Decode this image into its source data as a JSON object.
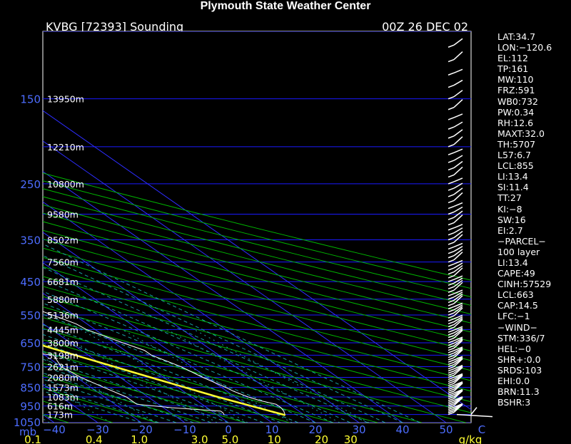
{
  "header": {
    "title": "Plymouth State Weather Center",
    "station": "KVBG [72393] Sounding",
    "time": "00Z 26 DEC 02"
  },
  "colors": {
    "isobar": "#1a1aff",
    "isotherm": "#2d2dff",
    "dry_adiabat": "#00b400",
    "moist_adiabat": "#1aa3a3",
    "mixing_ratio": "#1aa3a3",
    "temperature": "#ffffff",
    "dewpoint": "#ffffff",
    "parcel": "#ffff33",
    "pressure_label": "#4d6dff",
    "axis_label": "#ffff33"
  },
  "chart_data": {
    "type": "line",
    "title": "Plymouth State Weather Center",
    "xlabel": "C",
    "ylabel": "mb",
    "pressure_ticks": [
      "150",
      "250",
      "350",
      "450",
      "550",
      "650",
      "750",
      "850",
      "950",
      "1050"
    ],
    "pressure_values": [
      150,
      250,
      350,
      450,
      550,
      650,
      750,
      850,
      950,
      1050
    ],
    "height_labels": [
      {
        "p": 150,
        "label": "13950m"
      },
      {
        "p": 200,
        "label": "12210m"
      },
      {
        "p": 250,
        "label": "10800m"
      },
      {
        "p": 300,
        "label": "9580m"
      },
      {
        "p": 350,
        "label": "8502m"
      },
      {
        "p": 400,
        "label": "7560m"
      },
      {
        "p": 450,
        "label": "6681m"
      },
      {
        "p": 500,
        "label": "5880m"
      },
      {
        "p": 550,
        "label": "5136m"
      },
      {
        "p": 600,
        "label": "4445m"
      },
      {
        "p": 650,
        "label": "3800m"
      },
      {
        "p": 700,
        "label": "3198m"
      },
      {
        "p": 750,
        "label": "2621m"
      },
      {
        "p": 800,
        "label": "2080m"
      },
      {
        "p": 850,
        "label": "1573m"
      },
      {
        "p": 900,
        "label": "1083m"
      },
      {
        "p": 950,
        "label": "616m"
      },
      {
        "p": 1000,
        "label": "173m"
      }
    ],
    "temp_ticks": [
      "−40",
      "−30",
      "−20",
      "−10",
      "0",
      "10",
      "20",
      "30",
      "40",
      "50"
    ],
    "temp_tick_values": [
      -40,
      -30,
      -20,
      -10,
      0,
      10,
      20,
      30,
      40,
      50
    ],
    "temp_unit": "C",
    "mixing_ratio_ticks": [
      "0.1",
      "0.4",
      "1.0",
      "3.0",
      "5.0",
      "10",
      "20",
      "30"
    ],
    "mixing_ratio_values": [
      0.1,
      0.4,
      1.0,
      3.0,
      5.0,
      10,
      20,
      30
    ],
    "mixing_ratio_unit": "g/kg",
    "series": [
      {
        "name": "Temperature",
        "points": [
          [
            1004,
            15.5
          ],
          [
            980,
            16.5
          ],
          [
            960,
            17
          ],
          [
            940,
            17
          ],
          [
            920,
            14.5
          ],
          [
            900,
            13
          ],
          [
            870,
            11.5
          ],
          [
            850,
            11
          ],
          [
            800,
            9
          ],
          [
            750,
            7.5
          ],
          [
            700,
            4.5
          ],
          [
            680,
            4.5
          ],
          [
            650,
            2
          ],
          [
            600,
            -2
          ],
          [
            580,
            -2.5
          ],
          [
            550,
            -5
          ],
          [
            500,
            -10
          ],
          [
            450,
            -14.5
          ],
          [
            400,
            -20
          ],
          [
            350,
            -26.5
          ],
          [
            300,
            -34
          ],
          [
            270,
            -39
          ],
          [
            250,
            -42
          ],
          [
            220,
            -47
          ],
          [
            200,
            -51
          ],
          [
            180,
            -54
          ],
          [
            160,
            -57
          ],
          [
            150,
            -58
          ],
          [
            140,
            -57
          ],
          [
            125,
            -54
          ],
          [
            110,
            -52
          ],
          [
            100,
            -51
          ]
        ]
      },
      {
        "name": "Dewpoint",
        "points": [
          [
            1004,
            1.5
          ],
          [
            990,
            2
          ],
          [
            980,
            2
          ],
          [
            960,
            -8
          ],
          [
            940,
            -15
          ],
          [
            900,
            -15
          ],
          [
            850,
            -17
          ],
          [
            800,
            -19
          ],
          [
            750,
            -20
          ],
          [
            700,
            -18
          ],
          [
            680,
            -26
          ],
          [
            650,
            -33
          ],
          [
            620,
            -28
          ],
          [
            550,
            -20
          ],
          [
            500,
            -16
          ],
          [
            470,
            -12
          ],
          [
            450,
            -14.5
          ],
          [
            420,
            -17
          ],
          [
            400,
            -28
          ],
          [
            370,
            -28
          ],
          [
            350,
            -23
          ],
          [
            320,
            -24
          ],
          [
            300,
            -26
          ],
          [
            270,
            -31
          ],
          [
            250,
            -39
          ],
          [
            220,
            -44
          ],
          [
            200,
            -47
          ],
          [
            180,
            -47
          ],
          [
            160,
            -52
          ],
          [
            140,
            -50
          ],
          [
            125,
            -48
          ],
          [
            110,
            -48
          ],
          [
            100,
            -48
          ]
        ]
      },
      {
        "name": "Parcel",
        "points": [
          [
            1004,
            15.5
          ],
          [
            900,
            6
          ],
          [
            800,
            -3
          ],
          [
            700,
            -13
          ],
          [
            663,
            -17
          ],
          [
            600,
            -20.5
          ],
          [
            550,
            -24
          ],
          [
            500,
            -27.5
          ],
          [
            450,
            -32.5
          ],
          [
            400,
            -38
          ],
          [
            350,
            -44
          ],
          [
            300,
            -51
          ],
          [
            250,
            -59
          ],
          [
            200,
            -68
          ],
          [
            150,
            -80
          ],
          [
            100,
            -98
          ]
        ]
      }
    ]
  },
  "indices": [
    "LAT:34.7",
    "LON:−120.6",
    "EL:112",
    "TP:161",
    "MW:110",
    "FRZ:591",
    "WB0:732",
    "PW:0.34",
    "RH:12.6",
    "MAXT:32.0",
    "TH:5707",
    "L57:6.7",
    "LCL:855",
    "LI:13.4",
    "SI:11.4",
    "TT:27",
    "KI:−8",
    "SW:16",
    "EI:2.7",
    "−PARCEL−",
    "100 layer",
    "LI:13.4",
    "CAPE:49",
    "CINH:57529",
    "LCL:663",
    "CAP:14.5",
    "LFC:−1",
    "−WIND−",
    "STM:336/7",
    "HEL:−0",
    "SHR+:0.0",
    "SRDS:103",
    "EHI:0.0",
    "BRN:11.3",
    "BSHR:3"
  ]
}
